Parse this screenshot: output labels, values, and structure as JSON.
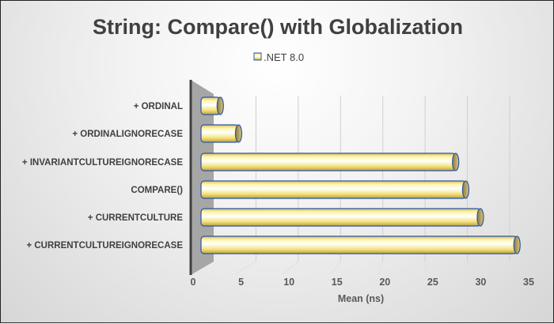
{
  "chart_data": {
    "type": "bar",
    "orientation": "horizontal",
    "title": "String: Compare() with Globalization",
    "categories": [
      "+ ORDINAL",
      "+ ORDINALIGNORECASE",
      "+ INVARIANTCULTUREIGNORECASE",
      "COMPARE()",
      "+ CURRENTCULTURE",
      "+ CURRENTCULTUREIGNORECASE"
    ],
    "series": [
      {
        "name": ".NET 8.0",
        "values": [
          2.1,
          4.1,
          27.8,
          28.9,
          30.5,
          34.5
        ]
      }
    ],
    "xlabel": "Mean (ns)",
    "ylabel": "",
    "xlim": [
      0,
      35
    ],
    "xticks": [
      "0",
      "5",
      "10",
      "15",
      "20",
      "25",
      "30",
      "35"
    ],
    "legend": "top",
    "grid": true,
    "colors": {
      "bar": "#fff2a8",
      "bar_edge": "#2f55a4",
      "title": "#404040"
    }
  }
}
